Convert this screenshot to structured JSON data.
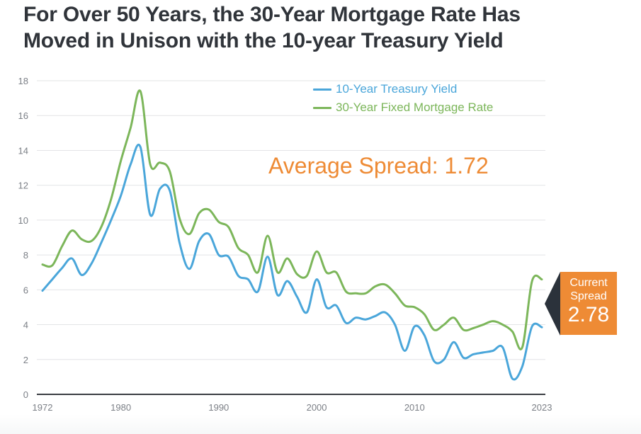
{
  "title": {
    "line1": "For Over 50 Years, the 30-Year Mortgage Rate Has",
    "line2": "Moved in Unison with the 10-year Treasury Yield"
  },
  "annotations": {
    "average_spread": "Average Spread: 1.72",
    "current_spread_label_1": "Current",
    "current_spread_label_2": "Spread",
    "current_spread_value": "2.78"
  },
  "colors": {
    "treasury": "#4aa6da",
    "mortgage": "#7cb65a",
    "accent": "#ee8b35",
    "callout_arrow": "#2b323b",
    "grid": "#e3e4e6",
    "axis": "#3a3d42"
  },
  "chart_data": {
    "type": "line",
    "title": "For Over 50 Years, the 30-Year Mortgage Rate Has Moved in Unison with the 10-year Treasury Yield",
    "xlabel": "",
    "ylabel": "",
    "xlim": [
      1972,
      2023
    ],
    "ylim": [
      0,
      18
    ],
    "grid": true,
    "legend_position": "top-right",
    "x_tick_labels": [
      "1972",
      "1980",
      "1990",
      "2000",
      "2010",
      "2023"
    ],
    "x_ticks": [
      1972,
      1980,
      1990,
      2000,
      2010,
      2023
    ],
    "y_tick_labels": [
      "0",
      "2",
      "4",
      "6",
      "8",
      "10",
      "12",
      "14",
      "16",
      "18"
    ],
    "y_ticks": [
      0,
      2,
      4,
      6,
      8,
      10,
      12,
      14,
      16,
      18
    ],
    "x": [
      1972,
      1973,
      1974,
      1975,
      1976,
      1977,
      1978,
      1979,
      1980,
      1981,
      1982,
      1983,
      1984,
      1985,
      1986,
      1987,
      1988,
      1989,
      1990,
      1991,
      1992,
      1993,
      1994,
      1995,
      1996,
      1997,
      1998,
      1999,
      2000,
      2001,
      2002,
      2003,
      2004,
      2005,
      2006,
      2007,
      2008,
      2009,
      2010,
      2011,
      2012,
      2013,
      2014,
      2015,
      2016,
      2017,
      2018,
      2019,
      2020,
      2021,
      2022,
      2023
    ],
    "series": [
      {
        "name": "10-Year Treasury Yield",
        "values": [
          5.95,
          6.6,
          7.25,
          7.8,
          6.85,
          7.5,
          8.7,
          10.0,
          11.4,
          13.2,
          14.2,
          10.3,
          11.8,
          11.7,
          8.7,
          7.2,
          8.8,
          9.2,
          8.0,
          7.9,
          6.8,
          6.6,
          5.9,
          7.9,
          5.7,
          6.5,
          5.6,
          4.7,
          6.6,
          5.0,
          5.1,
          4.1,
          4.4,
          4.3,
          4.5,
          4.7,
          4.0,
          2.5,
          3.9,
          3.4,
          1.9,
          2.0,
          3.0,
          2.1,
          2.3,
          2.4,
          2.5,
          2.7,
          0.9,
          1.6,
          3.9,
          3.85
        ]
      },
      {
        "name": "30-Year Fixed Mortgage Rate",
        "values": [
          7.45,
          7.4,
          8.5,
          9.4,
          8.9,
          8.8,
          9.6,
          11.2,
          13.4,
          15.3,
          17.4,
          13.2,
          13.3,
          12.8,
          10.1,
          9.2,
          10.4,
          10.6,
          9.9,
          9.6,
          8.4,
          8.0,
          7.0,
          9.1,
          7.0,
          7.8,
          6.9,
          6.8,
          8.2,
          7.0,
          7.0,
          5.9,
          5.8,
          5.8,
          6.2,
          6.3,
          5.8,
          5.1,
          5.0,
          4.6,
          3.7,
          4.0,
          4.4,
          3.7,
          3.8,
          4.0,
          4.2,
          4.0,
          3.6,
          2.7,
          6.5,
          6.6
        ]
      }
    ]
  }
}
